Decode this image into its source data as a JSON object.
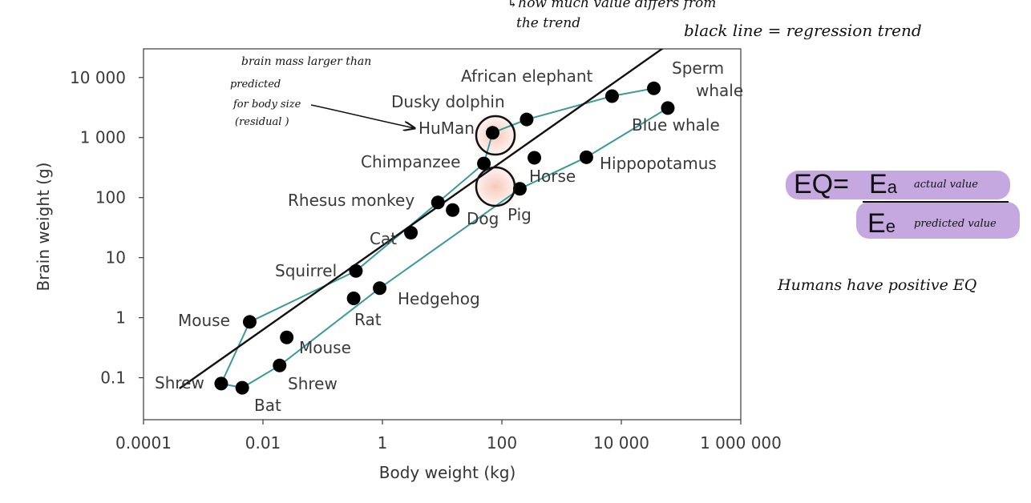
{
  "chart_data": {
    "type": "scatter",
    "xlabel": "Body weight (kg)",
    "ylabel": "Brain weight (g)",
    "xscale": "log",
    "yscale": "log",
    "xlim": [
      0.0001,
      1000000
    ],
    "ylim": [
      0.02,
      30000
    ],
    "x_ticks": [
      0.0001,
      0.01,
      1,
      100,
      10000,
      1000000
    ],
    "x_tick_labels": [
      "0.0001",
      "0.01",
      "1",
      "100",
      "10 000",
      "1 000 000"
    ],
    "y_ticks": [
      0.1,
      1,
      10,
      100,
      1000,
      10000
    ],
    "y_tick_labels": [
      "0.1",
      "1",
      "10",
      "100",
      "1 000",
      "10 000"
    ],
    "grid": false,
    "points": [
      {
        "label": "Shrew",
        "x": 0.002,
        "y": 0.08
      },
      {
        "label": "Bat",
        "x": 0.0045,
        "y": 0.068
      },
      {
        "label": "Mouse",
        "x": 0.006,
        "y": 0.85
      },
      {
        "label": "Mouse",
        "x": 0.025,
        "y": 0.47
      },
      {
        "label": "Shrew",
        "x": 0.019,
        "y": 0.16
      },
      {
        "label": "Squirrel",
        "x": 0.36,
        "y": 6
      },
      {
        "label": "Rat",
        "x": 0.33,
        "y": 2.1
      },
      {
        "label": "Hedgehog",
        "x": 0.9,
        "y": 3.1
      },
      {
        "label": "Cat",
        "x": 3,
        "y": 26
      },
      {
        "label": "Rhesus monkey",
        "x": 8.5,
        "y": 83
      },
      {
        "label": "Dog",
        "x": 15,
        "y": 62
      },
      {
        "label": "Chimpanzee",
        "x": 50,
        "y": 370
      },
      {
        "label": "Human",
        "x": 70,
        "y": 1200
      },
      {
        "label": "Pig",
        "x": 200,
        "y": 140
      },
      {
        "label": "Dusky dolphin",
        "x": 260,
        "y": 2000
      },
      {
        "label": "Horse",
        "x": 350,
        "y": 460
      },
      {
        "label": "Hippopotamus",
        "x": 2600,
        "y": 470
      },
      {
        "label": "African elephant",
        "x": 7000,
        "y": 4900
      },
      {
        "label": "Sperm whale",
        "x": 35000,
        "y": 6600
      },
      {
        "label": "Blue whale",
        "x": 60000,
        "y": 3100
      }
    ],
    "labels": {
      "Shrew_a": "Shrew",
      "Bat": "Bat",
      "Mouse_a": "Mouse",
      "Mouse_b": "Mouse",
      "Shrew_b": "Shrew",
      "Squirrel": "Squirrel",
      "Rat": "Rat",
      "Hedgehog": "Hedgehog",
      "Cat": "Cat",
      "Rhesus": "Rhesus monkey",
      "Dog": "Dog",
      "Chimp": "Chimpanzee",
      "Human": "HuMan",
      "Pig": "Pig",
      "Dolphin": "Dusky dolphin",
      "Horse": "Horse",
      "Hippo": "Hippopotamus",
      "Elephant": "African elephant",
      "Sperm1": "Sperm",
      "Sperm2": "whale",
      "Blue": "Blue whale"
    },
    "colors": {
      "points": "#000000",
      "trend": "#111111",
      "envelope": "#3a9a9a",
      "highlight": "#f6c3b4"
    }
  },
  "annotations": {
    "top_note_1": "↳how much value differs from",
    "top_note_2": "the trend",
    "legend_note": "black line = regression trend",
    "brain_note_1": "brain mass larger than",
    "brain_note_2": "predicted",
    "brain_note_3": "for body size",
    "brain_note_4": "(residual )",
    "eq_lhs": "EQ=",
    "eq_num": "E",
    "eq_num_sub": "a",
    "eq_num_note": "actual value",
    "eq_den": "E",
    "eq_den_sub": "e",
    "eq_den_note": "predicted value",
    "conclusion": "Humans have positive EQ"
  }
}
